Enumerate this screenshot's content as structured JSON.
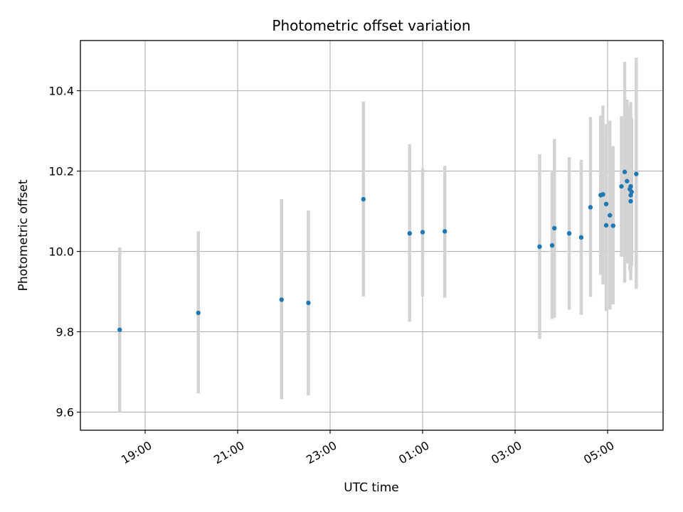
{
  "chart_data": {
    "type": "scatter",
    "title": "Photometric offset variation",
    "xlabel": "UTC time",
    "ylabel": "Photometric offset",
    "x_unit": "hours",
    "xlim": [
      17.6,
      30.2
    ],
    "ylim": [
      9.555,
      10.525
    ],
    "x_ticks": [
      {
        "value": 19,
        "label": "19:00"
      },
      {
        "value": 21,
        "label": "21:00"
      },
      {
        "value": 23,
        "label": "23:00"
      },
      {
        "value": 25,
        "label": "01:00"
      },
      {
        "value": 27,
        "label": "03:00"
      },
      {
        "value": 29,
        "label": "05:00"
      }
    ],
    "y_ticks": [
      {
        "value": 9.6,
        "label": "9.6"
      },
      {
        "value": 9.8,
        "label": "9.8"
      },
      {
        "value": 10.0,
        "label": "10.0"
      },
      {
        "value": 10.2,
        "label": "10.2"
      },
      {
        "value": 10.4,
        "label": "10.4"
      }
    ],
    "grid": true,
    "marker_color": "#1f77b4",
    "errorbar_color": "#d3d3d3",
    "points": [
      {
        "x": 18.45,
        "y": 9.805,
        "lo": 9.6,
        "hi": 10.01
      },
      {
        "x": 20.15,
        "y": 9.847,
        "lo": 9.647,
        "hi": 10.05
      },
      {
        "x": 21.95,
        "y": 9.88,
        "lo": 9.632,
        "hi": 10.13
      },
      {
        "x": 22.53,
        "y": 9.872,
        "lo": 9.642,
        "hi": 10.102
      },
      {
        "x": 23.72,
        "y": 10.13,
        "lo": 9.888,
        "hi": 10.373
      },
      {
        "x": 24.72,
        "y": 10.045,
        "lo": 9.825,
        "hi": 10.267
      },
      {
        "x": 25.0,
        "y": 10.048,
        "lo": 9.888,
        "hi": 10.207
      },
      {
        "x": 25.48,
        "y": 10.05,
        "lo": 9.885,
        "hi": 10.213
      },
      {
        "x": 27.53,
        "y": 10.012,
        "lo": 9.782,
        "hi": 10.242
      },
      {
        "x": 27.8,
        "y": 10.015,
        "lo": 9.832,
        "hi": 10.198
      },
      {
        "x": 27.85,
        "y": 10.058,
        "lo": 9.835,
        "hi": 10.28
      },
      {
        "x": 28.17,
        "y": 10.045,
        "lo": 9.855,
        "hi": 10.235
      },
      {
        "x": 28.43,
        "y": 10.035,
        "lo": 9.842,
        "hi": 10.228
      },
      {
        "x": 28.63,
        "y": 10.11,
        "lo": 9.887,
        "hi": 10.335
      },
      {
        "x": 28.85,
        "y": 10.14,
        "lo": 9.942,
        "hi": 10.338
      },
      {
        "x": 28.9,
        "y": 10.142,
        "lo": 9.918,
        "hi": 10.363
      },
      {
        "x": 28.97,
        "y": 10.065,
        "lo": 9.852,
        "hi": 10.278
      },
      {
        "x": 28.97,
        "y": 10.118,
        "lo": 9.917,
        "hi": 10.317
      },
      {
        "x": 29.05,
        "y": 10.09,
        "lo": 9.855,
        "hi": 10.325
      },
      {
        "x": 29.12,
        "y": 10.064,
        "lo": 9.868,
        "hi": 10.262
      },
      {
        "x": 29.3,
        "y": 10.162,
        "lo": 9.987,
        "hi": 10.337
      },
      {
        "x": 29.37,
        "y": 10.198,
        "lo": 9.922,
        "hi": 10.472
      },
      {
        "x": 29.42,
        "y": 10.175,
        "lo": 9.97,
        "hi": 10.378
      },
      {
        "x": 29.48,
        "y": 10.155,
        "lo": 9.952,
        "hi": 10.36
      },
      {
        "x": 29.5,
        "y": 10.162,
        "lo": 9.945,
        "hi": 10.372
      },
      {
        "x": 29.5,
        "y": 10.14,
        "lo": 9.928,
        "hi": 10.34
      },
      {
        "x": 29.5,
        "y": 10.125,
        "lo": 9.955,
        "hi": 10.295
      },
      {
        "x": 29.52,
        "y": 10.148,
        "lo": 9.965,
        "hi": 10.332
      },
      {
        "x": 29.62,
        "y": 10.193,
        "lo": 9.907,
        "hi": 10.482
      }
    ]
  }
}
